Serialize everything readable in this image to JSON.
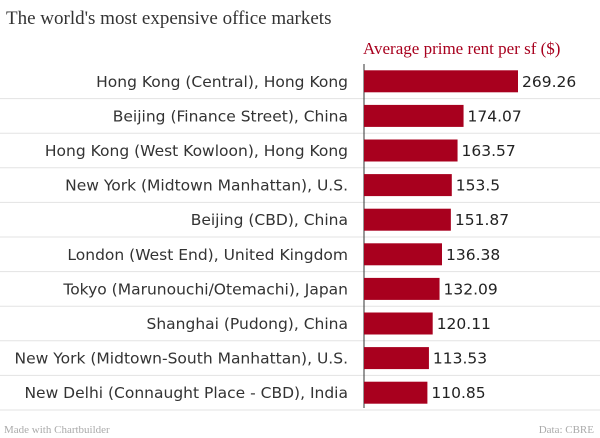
{
  "chart_data": {
    "type": "bar",
    "orientation": "horizontal",
    "title": "The world's most expensive office markets",
    "series": [
      {
        "name": "Average prime rent per sf ($)",
        "color": "#a8001e",
        "values": [
          269.26,
          174.07,
          163.57,
          153.5,
          151.87,
          136.38,
          132.09,
          120.11,
          113.53,
          110.85
        ],
        "labels": [
          "269.26",
          "174.07",
          "163.57",
          "153.5",
          "151.87",
          "136.38",
          "132.09",
          "120.11",
          "113.53",
          "110.85"
        ]
      }
    ],
    "categories": [
      "Hong Kong (Central), Hong Kong",
      "Beijing (Finance Street), China",
      "Hong Kong (West Kowloon), Hong Kong",
      "New York (Midtown Manhattan), U.S.",
      "Beijing (CBD), China",
      "London (West End), United Kingdom",
      "Tokyo (Marunouchi/Otemachi), Japan",
      "Shanghai (Pudong), China",
      "New York (Midtown-South Manhattan), U.S.",
      "New Delhi (Connaught Place - CBD), India"
    ],
    "xlim": [
      0,
      269.26
    ],
    "grid": true
  },
  "footer": {
    "left": "Made with Chartbuilder",
    "right": "Data: CBRE"
  }
}
